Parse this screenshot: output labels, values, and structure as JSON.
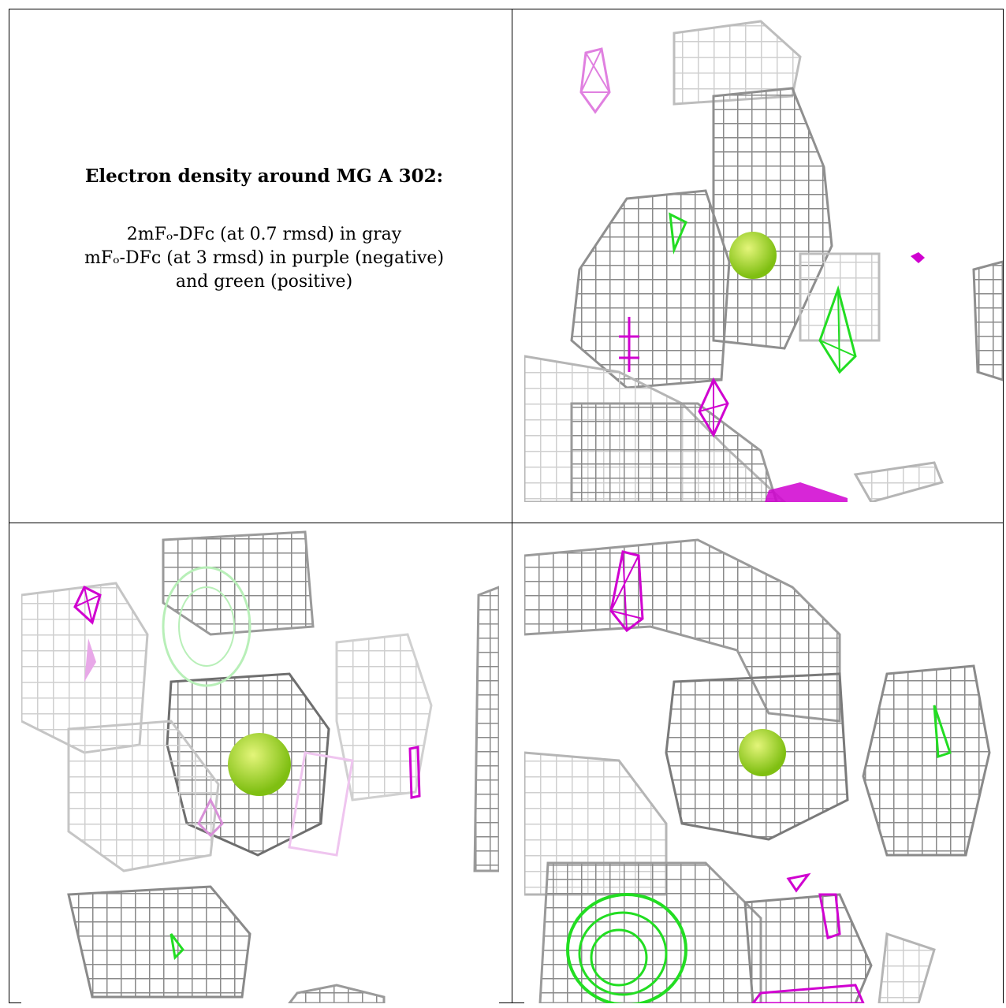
{
  "caption": {
    "heading": "Electron density around MG A 302:",
    "line1": "2mFₒ-DFᴄ (at 0.7 rmsd) in gray",
    "line2": "mFₒ-DFᴄ (at 3 rmsd) in purple (negative)",
    "line3": "and green (positive)"
  },
  "colors": {
    "density_2fofc": "#9a9a9a",
    "negative_fofc": "#d000d0",
    "positive_fofc": "#22dd22",
    "magnesium_atom": "#9ad81a"
  },
  "panels": [
    {
      "name": "view-1"
    },
    {
      "name": "view-2"
    },
    {
      "name": "view-3"
    }
  ]
}
